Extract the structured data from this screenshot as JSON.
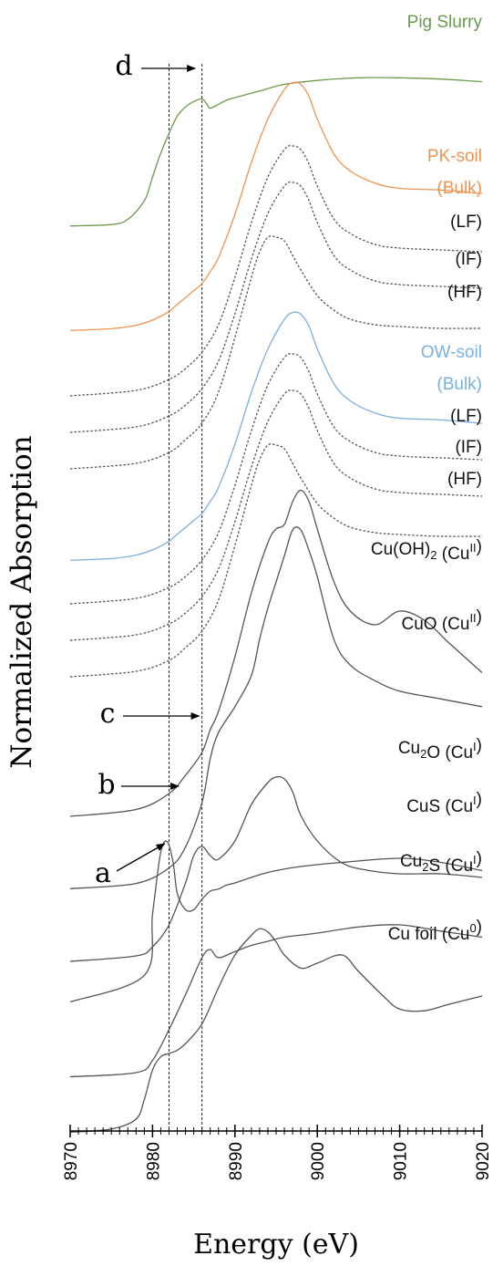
{
  "chart_data": {
    "type": "line",
    "xlabel": "Energy (eV)",
    "ylabel": "Normalized Absorption",
    "xlim": [
      8970,
      9020
    ],
    "x_ticks": [
      "8970",
      "8980",
      "8990",
      "9000",
      "9010",
      "9020"
    ],
    "reference_lines": [
      8982,
      8986
    ],
    "annotations": [
      {
        "text": "a",
        "arrow_to_energy": 8981.8
      },
      {
        "text": "b",
        "arrow_to_energy": 8983.5
      },
      {
        "text": "c",
        "arrow_to_energy": 8986.0
      },
      {
        "text": "d",
        "arrow_to_energy": 8985.5
      }
    ],
    "series": [
      {
        "name": "Pig Slurry",
        "color": "#6a9a4a",
        "dash": "solid",
        "x": [
          8970,
          8975,
          8977,
          8979,
          8980,
          8981,
          8982,
          8983,
          8984,
          8985,
          8986,
          8986.6,
          8987,
          8988,
          8989,
          8990,
          8993,
          8996,
          9000,
          9005,
          9010,
          9015,
          9020
        ],
        "y": [
          0.03,
          0.04,
          0.08,
          0.22,
          0.4,
          0.58,
          0.73,
          0.86,
          0.93,
          0.97,
          0.99,
          0.95,
          0.92,
          0.95,
          0.98,
          1.0,
          1.05,
          1.1,
          1.13,
          1.15,
          1.15,
          1.14,
          1.12
        ]
      },
      {
        "name": "PK-soil (Bulk)",
        "color": "#ef9450",
        "dash": "solid",
        "x": [
          8970,
          8975,
          8978,
          8980,
          8982,
          8983,
          8984,
          8985,
          8986,
          8987,
          8988,
          8990,
          8992,
          8994,
          8996,
          8997,
          8998,
          8999,
          9000,
          9002,
          9004,
          9007,
          9010,
          9015,
          9020
        ],
        "y": [
          0.03,
          0.04,
          0.06,
          0.09,
          0.14,
          0.18,
          0.22,
          0.26,
          0.3,
          0.37,
          0.45,
          0.7,
          1.0,
          1.25,
          1.42,
          1.46,
          1.45,
          1.38,
          1.25,
          1.05,
          0.95,
          0.88,
          0.85,
          0.84,
          0.82
        ]
      },
      {
        "name": "(LF)",
        "color": "#555555",
        "dash": "dotted",
        "x": [
          8970,
          8978,
          8982,
          8984,
          8986,
          8988,
          8990,
          8992,
          8994,
          8996,
          8997,
          8998,
          8999,
          9000,
          9002,
          9004,
          9007,
          9010,
          9015,
          9020
        ],
        "y": [
          0.03,
          0.06,
          0.12,
          0.18,
          0.27,
          0.42,
          0.68,
          0.98,
          1.23,
          1.38,
          1.4,
          1.38,
          1.3,
          1.18,
          1.0,
          0.92,
          0.86,
          0.84,
          0.83,
          0.82
        ]
      },
      {
        "name": "(IF)",
        "color": "#555555",
        "dash": "dotted",
        "x": [
          8970,
          8978,
          8982,
          8984,
          8986,
          8988,
          8990,
          8992,
          8994,
          8996,
          8997,
          8998,
          8999,
          9000,
          9002,
          9004,
          9007,
          9010,
          9015,
          9020
        ],
        "y": [
          0.03,
          0.06,
          0.12,
          0.18,
          0.27,
          0.42,
          0.68,
          0.98,
          1.23,
          1.38,
          1.4,
          1.38,
          1.3,
          1.18,
          1.0,
          0.92,
          0.86,
          0.84,
          0.83,
          0.82
        ]
      },
      {
        "name": "(HF)",
        "color": "#555555",
        "dash": "dotted",
        "x": [
          8970,
          8978,
          8982,
          8984,
          8986,
          8988,
          8990,
          8992,
          8993,
          8994,
          8995,
          8996,
          8997,
          8998,
          9000,
          9002,
          9004,
          9007,
          9010,
          9015,
          9020
        ],
        "y": [
          0.03,
          0.06,
          0.12,
          0.19,
          0.28,
          0.45,
          0.75,
          1.08,
          1.22,
          1.3,
          1.3,
          1.28,
          1.2,
          1.12,
          0.98,
          0.9,
          0.85,
          0.82,
          0.81,
          0.8,
          0.8
        ]
      },
      {
        "name": "OW-soil (Bulk)",
        "color": "#7ab0e0",
        "dash": "solid",
        "x": [
          8970,
          8975,
          8978,
          8980,
          8982,
          8983,
          8984,
          8985,
          8986,
          8987,
          8988,
          8990,
          8992,
          8994,
          8996,
          8997,
          8998,
          8999,
          9000,
          9002,
          9004,
          9007,
          9010,
          9015,
          9020
        ],
        "y": [
          0.03,
          0.04,
          0.06,
          0.09,
          0.14,
          0.18,
          0.22,
          0.26,
          0.3,
          0.37,
          0.45,
          0.7,
          1.0,
          1.25,
          1.42,
          1.46,
          1.45,
          1.38,
          1.25,
          1.05,
          0.95,
          0.88,
          0.85,
          0.84,
          0.82
        ]
      },
      {
        "name": "(LF)",
        "color": "#555555",
        "dash": "dotted",
        "x": [
          8970,
          8978,
          8982,
          8984,
          8986,
          8988,
          8990,
          8992,
          8994,
          8996,
          8997,
          8998,
          8999,
          9000,
          9002,
          9004,
          9007,
          9010,
          9015,
          9020
        ],
        "y": [
          0.03,
          0.06,
          0.12,
          0.18,
          0.27,
          0.42,
          0.68,
          0.98,
          1.23,
          1.38,
          1.4,
          1.38,
          1.3,
          1.18,
          1.0,
          0.92,
          0.86,
          0.84,
          0.83,
          0.82
        ]
      },
      {
        "name": "(IF)",
        "color": "#555555",
        "dash": "dotted",
        "x": [
          8970,
          8978,
          8982,
          8984,
          8986,
          8988,
          8990,
          8992,
          8994,
          8996,
          8997,
          8998,
          8999,
          9000,
          9002,
          9004,
          9007,
          9010,
          9015,
          9020
        ],
        "y": [
          0.03,
          0.06,
          0.12,
          0.18,
          0.27,
          0.42,
          0.68,
          0.98,
          1.23,
          1.38,
          1.4,
          1.38,
          1.3,
          1.18,
          1.0,
          0.92,
          0.86,
          0.84,
          0.83,
          0.82
        ]
      },
      {
        "name": "(HF)",
        "color": "#555555",
        "dash": "dotted",
        "x": [
          8970,
          8978,
          8982,
          8984,
          8986,
          8988,
          8990,
          8992,
          8993,
          8994,
          8995,
          8996,
          8997,
          8998,
          9000,
          9002,
          9004,
          9007,
          9010,
          9015,
          9020
        ],
        "y": [
          0.03,
          0.06,
          0.12,
          0.19,
          0.28,
          0.45,
          0.75,
          1.08,
          1.22,
          1.3,
          1.3,
          1.28,
          1.2,
          1.12,
          0.98,
          0.9,
          0.85,
          0.82,
          0.81,
          0.8,
          0.8
        ]
      },
      {
        "name": "Cu(OH)2 (CuII)",
        "color": "#555555",
        "dash": "solid",
        "x": [
          8970,
          8978,
          8982,
          8984,
          8986,
          8987,
          8988,
          8990,
          8992,
          8994,
          8995,
          8996,
          8997,
          8998,
          8999,
          9000,
          9002,
          9004,
          9007,
          9010,
          9013,
          9016,
          9020
        ],
        "y": [
          0.02,
          0.05,
          0.12,
          0.2,
          0.3,
          0.4,
          0.48,
          0.72,
          1.0,
          1.22,
          1.28,
          1.3,
          1.4,
          1.45,
          1.4,
          1.28,
          1.05,
          0.92,
          0.86,
          0.92,
          0.88,
          0.78,
          0.65
        ]
      },
      {
        "name": "CuO (CuII)",
        "color": "#555555",
        "dash": "solid",
        "x": [
          8970,
          8978,
          8982,
          8984,
          8986,
          8987,
          8988,
          8990,
          8992,
          8993,
          8994,
          8995,
          8996,
          8997,
          8998,
          8999,
          9000,
          9002,
          9004,
          9007,
          9010,
          9015,
          9020
        ],
        "y": [
          0.02,
          0.04,
          0.1,
          0.18,
          0.35,
          0.52,
          0.62,
          0.72,
          0.84,
          0.98,
          1.1,
          1.2,
          1.3,
          1.4,
          1.4,
          1.32,
          1.22,
          0.98,
          0.88,
          0.82,
          0.78,
          0.75,
          0.72
        ]
      },
      {
        "name": "Cu2O (CuI)",
        "color": "#555555",
        "dash": "solid",
        "x": [
          8970,
          8978,
          8980,
          8982,
          8984,
          8985,
          8986,
          8987,
          8988,
          8990,
          8992,
          8994,
          8995,
          8996,
          8997,
          8998,
          9000,
          9003,
          9006,
          9010,
          9015,
          9020
        ],
        "y": [
          0.02,
          0.05,
          0.1,
          0.22,
          0.45,
          0.6,
          0.65,
          0.6,
          0.58,
          0.68,
          0.88,
          1.0,
          1.03,
          1.02,
          0.95,
          0.82,
          0.68,
          0.56,
          0.52,
          0.5,
          0.5,
          0.48
        ]
      },
      {
        "name": "CuS (CuI)",
        "color": "#555555",
        "dash": "solid",
        "x": [
          8970,
          8979,
          8980,
          8981,
          8981.8,
          8982.5,
          8983,
          8984,
          8985,
          8986,
          8987,
          8988,
          8989,
          8990,
          8993,
          8995,
          8998,
          9003,
          9010,
          9015,
          9020
        ],
        "y": [
          0.02,
          0.15,
          0.45,
          0.75,
          0.8,
          0.7,
          0.55,
          0.47,
          0.47,
          0.52,
          0.56,
          0.57,
          0.59,
          0.6,
          0.64,
          0.66,
          0.68,
          0.7,
          0.72,
          0.7,
          0.66
        ]
      },
      {
        "name": "Cu2S (CuI)",
        "color": "#555555",
        "dash": "solid",
        "x": [
          8970,
          8978,
          8980,
          8982,
          8984,
          8986,
          8987,
          8988,
          8990,
          8992,
          8994,
          8996,
          9000,
          9005,
          9010,
          9015,
          9020
        ],
        "y": [
          0.02,
          0.04,
          0.1,
          0.25,
          0.42,
          0.6,
          0.64,
          0.6,
          0.63,
          0.66,
          0.68,
          0.7,
          0.72,
          0.75,
          0.76,
          0.73,
          0.7
        ]
      },
      {
        "name": "Cu foil (Cu0)",
        "color": "#555555",
        "dash": "solid",
        "x": [
          8970,
          8975,
          8978,
          8979,
          8980,
          8981,
          8982,
          8983,
          8984,
          8986,
          8988,
          8990,
          8992,
          8993,
          8994,
          8995,
          8996,
          8998,
          9000,
          9003,
          9005,
          9008,
          9010,
          9013,
          9016,
          9020
        ],
        "y": [
          0.02,
          0.04,
          0.1,
          0.22,
          0.4,
          0.48,
          0.5,
          0.52,
          0.56,
          0.68,
          0.9,
          1.1,
          1.22,
          1.26,
          1.24,
          1.18,
          1.1,
          1.02,
          1.05,
          1.1,
          1.0,
          0.85,
          0.77,
          0.76,
          0.8,
          0.85
        ]
      }
    ]
  }
}
